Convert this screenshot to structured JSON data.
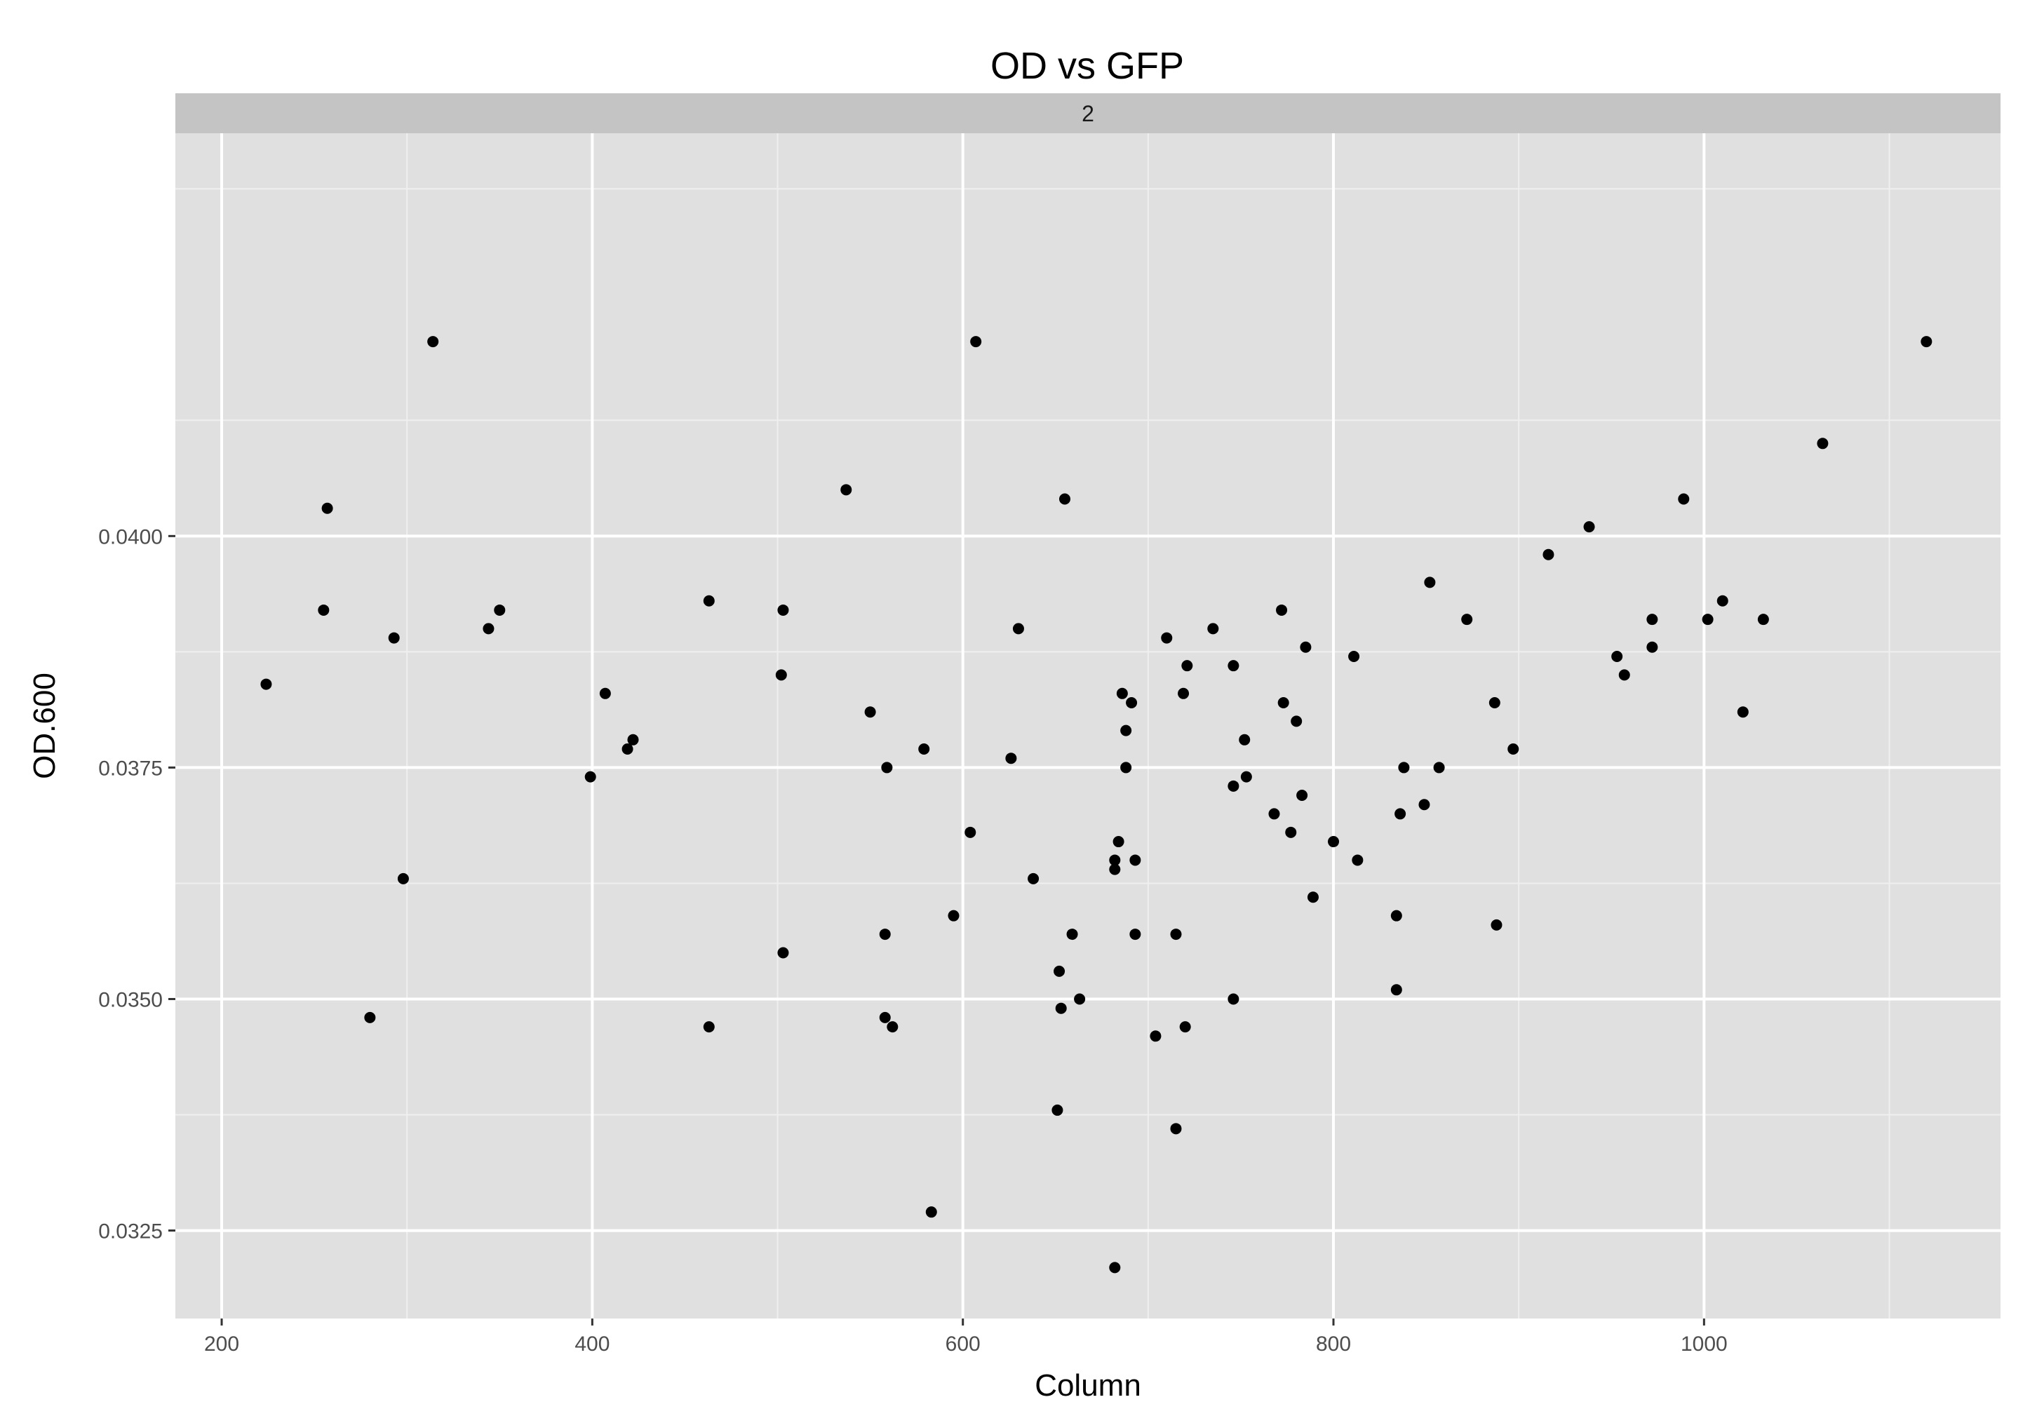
{
  "chart_data": {
    "type": "scatter",
    "title": "OD vs GFP",
    "facet_label": "2",
    "xlabel": "Column",
    "ylabel": "OD.600",
    "xlim": [
      175,
      1160
    ],
    "ylim": [
      0.03155,
      0.04435
    ],
    "x_ticks": [
      200,
      400,
      600,
      800,
      1000
    ],
    "x_tick_labels": [
      "200",
      "400",
      "600",
      "800",
      "1000"
    ],
    "y_ticks": [
      0.0325,
      0.035,
      0.0375,
      0.04
    ],
    "y_tick_labels": [
      "0.0325",
      "0.0350",
      "0.0375",
      "0.0400"
    ],
    "grid": true,
    "colors": {
      "panel": "#e0e0e0",
      "strip": "#c4c4c4",
      "grid_major": "#ffffff",
      "grid_minor": "#efefef",
      "point": "#000000"
    },
    "points": [
      {
        "x": 224,
        "y": 0.0384
      },
      {
        "x": 255,
        "y": 0.0392
      },
      {
        "x": 257,
        "y": 0.0403
      },
      {
        "x": 280,
        "y": 0.0348
      },
      {
        "x": 293,
        "y": 0.0389
      },
      {
        "x": 298,
        "y": 0.0363
      },
      {
        "x": 314,
        "y": 0.0421
      },
      {
        "x": 344,
        "y": 0.039
      },
      {
        "x": 350,
        "y": 0.0392
      },
      {
        "x": 399,
        "y": 0.0374
      },
      {
        "x": 407,
        "y": 0.0383
      },
      {
        "x": 419,
        "y": 0.0377
      },
      {
        "x": 422,
        "y": 0.0378
      },
      {
        "x": 463,
        "y": 0.0393
      },
      {
        "x": 463,
        "y": 0.0347
      },
      {
        "x": 502,
        "y": 0.0385
      },
      {
        "x": 503,
        "y": 0.0392
      },
      {
        "x": 503,
        "y": 0.0355
      },
      {
        "x": 537,
        "y": 0.0405
      },
      {
        "x": 550,
        "y": 0.0381
      },
      {
        "x": 558,
        "y": 0.0357
      },
      {
        "x": 558,
        "y": 0.0348
      },
      {
        "x": 559,
        "y": 0.0375
      },
      {
        "x": 562,
        "y": 0.0347
      },
      {
        "x": 579,
        "y": 0.0377
      },
      {
        "x": 583,
        "y": 0.0327
      },
      {
        "x": 595,
        "y": 0.0359
      },
      {
        "x": 604,
        "y": 0.0368
      },
      {
        "x": 607,
        "y": 0.0421
      },
      {
        "x": 626,
        "y": 0.0376
      },
      {
        "x": 630,
        "y": 0.039
      },
      {
        "x": 638,
        "y": 0.0363
      },
      {
        "x": 651,
        "y": 0.0338
      },
      {
        "x": 652,
        "y": 0.0353
      },
      {
        "x": 653,
        "y": 0.0349
      },
      {
        "x": 655,
        "y": 0.0404
      },
      {
        "x": 659,
        "y": 0.0357
      },
      {
        "x": 663,
        "y": 0.035
      },
      {
        "x": 682,
        "y": 0.0365
      },
      {
        "x": 682,
        "y": 0.0364
      },
      {
        "x": 682,
        "y": 0.0321
      },
      {
        "x": 684,
        "y": 0.0367
      },
      {
        "x": 686,
        "y": 0.0383
      },
      {
        "x": 688,
        "y": 0.0379
      },
      {
        "x": 688,
        "y": 0.0375
      },
      {
        "x": 691,
        "y": 0.0382
      },
      {
        "x": 693,
        "y": 0.0365
      },
      {
        "x": 693,
        "y": 0.0357
      },
      {
        "x": 704,
        "y": 0.0346
      },
      {
        "x": 710,
        "y": 0.0389
      },
      {
        "x": 715,
        "y": 0.0357
      },
      {
        "x": 715,
        "y": 0.0336
      },
      {
        "x": 719,
        "y": 0.0383
      },
      {
        "x": 720,
        "y": 0.0347
      },
      {
        "x": 721,
        "y": 0.0386
      },
      {
        "x": 735,
        "y": 0.039
      },
      {
        "x": 746,
        "y": 0.0386
      },
      {
        "x": 746,
        "y": 0.0373
      },
      {
        "x": 746,
        "y": 0.035
      },
      {
        "x": 752,
        "y": 0.0378
      },
      {
        "x": 753,
        "y": 0.0374
      },
      {
        "x": 768,
        "y": 0.037
      },
      {
        "x": 772,
        "y": 0.0392
      },
      {
        "x": 773,
        "y": 0.0382
      },
      {
        "x": 777,
        "y": 0.0368
      },
      {
        "x": 780,
        "y": 0.038
      },
      {
        "x": 783,
        "y": 0.0372
      },
      {
        "x": 785,
        "y": 0.0388
      },
      {
        "x": 789,
        "y": 0.0361
      },
      {
        "x": 800,
        "y": 0.0367
      },
      {
        "x": 811,
        "y": 0.0387
      },
      {
        "x": 813,
        "y": 0.0365
      },
      {
        "x": 834,
        "y": 0.0359
      },
      {
        "x": 834,
        "y": 0.0351
      },
      {
        "x": 836,
        "y": 0.037
      },
      {
        "x": 838,
        "y": 0.0375
      },
      {
        "x": 849,
        "y": 0.0371
      },
      {
        "x": 852,
        "y": 0.0395
      },
      {
        "x": 857,
        "y": 0.0375
      },
      {
        "x": 872,
        "y": 0.0391
      },
      {
        "x": 887,
        "y": 0.0382
      },
      {
        "x": 888,
        "y": 0.0358
      },
      {
        "x": 897,
        "y": 0.0377
      },
      {
        "x": 916,
        "y": 0.0398
      },
      {
        "x": 938,
        "y": 0.0401
      },
      {
        "x": 953,
        "y": 0.0387
      },
      {
        "x": 957,
        "y": 0.0385
      },
      {
        "x": 972,
        "y": 0.0391
      },
      {
        "x": 972,
        "y": 0.0388
      },
      {
        "x": 989,
        "y": 0.0404
      },
      {
        "x": 1002,
        "y": 0.0391
      },
      {
        "x": 1010,
        "y": 0.0393
      },
      {
        "x": 1021,
        "y": 0.0381
      },
      {
        "x": 1032,
        "y": 0.0391
      },
      {
        "x": 1064,
        "y": 0.041
      },
      {
        "x": 1120,
        "y": 0.0421
      }
    ]
  }
}
